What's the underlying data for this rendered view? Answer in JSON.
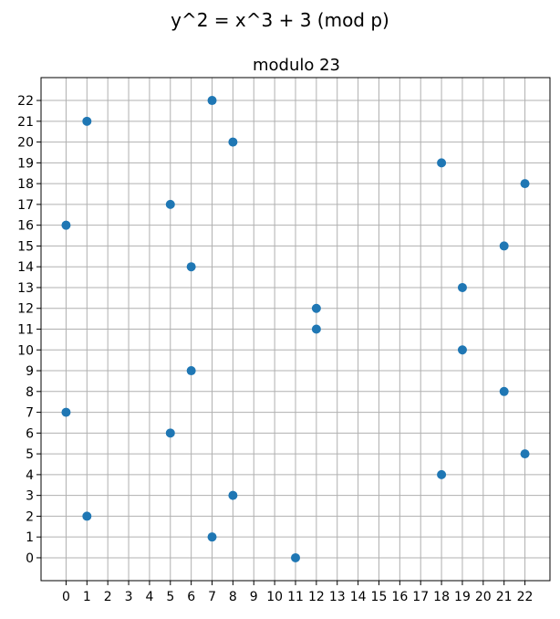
{
  "chart_data": {
    "type": "scatter",
    "suptitle": "y^2 = x^3 + 3 (mod p)",
    "title": "modulo 23",
    "xlabel": "",
    "ylabel": "",
    "xlim": [
      -1.2,
      23.2
    ],
    "ylim": [
      -1.1,
      23.1
    ],
    "xticks": [
      0,
      1,
      2,
      3,
      4,
      5,
      6,
      7,
      8,
      9,
      10,
      11,
      12,
      13,
      14,
      15,
      16,
      17,
      18,
      19,
      20,
      21,
      22
    ],
    "yticks": [
      0,
      1,
      2,
      3,
      4,
      5,
      6,
      7,
      8,
      9,
      10,
      11,
      12,
      13,
      14,
      15,
      16,
      17,
      18,
      19,
      20,
      21,
      22
    ],
    "grid": true,
    "marker_color": "#1f77b4",
    "points": [
      {
        "x": 0,
        "y": 7
      },
      {
        "x": 0,
        "y": 16
      },
      {
        "x": 1,
        "y": 2
      },
      {
        "x": 1,
        "y": 21
      },
      {
        "x": 5,
        "y": 6
      },
      {
        "x": 5,
        "y": 17
      },
      {
        "x": 6,
        "y": 9
      },
      {
        "x": 6,
        "y": 14
      },
      {
        "x": 7,
        "y": 1
      },
      {
        "x": 7,
        "y": 22
      },
      {
        "x": 8,
        "y": 3
      },
      {
        "x": 8,
        "y": 20
      },
      {
        "x": 11,
        "y": 0
      },
      {
        "x": 12,
        "y": 11
      },
      {
        "x": 12,
        "y": 12
      },
      {
        "x": 18,
        "y": 4
      },
      {
        "x": 18,
        "y": 19
      },
      {
        "x": 19,
        "y": 10
      },
      {
        "x": 19,
        "y": 13
      },
      {
        "x": 21,
        "y": 8
      },
      {
        "x": 21,
        "y": 15
      },
      {
        "x": 22,
        "y": 5
      },
      {
        "x": 22,
        "y": 18
      }
    ]
  }
}
